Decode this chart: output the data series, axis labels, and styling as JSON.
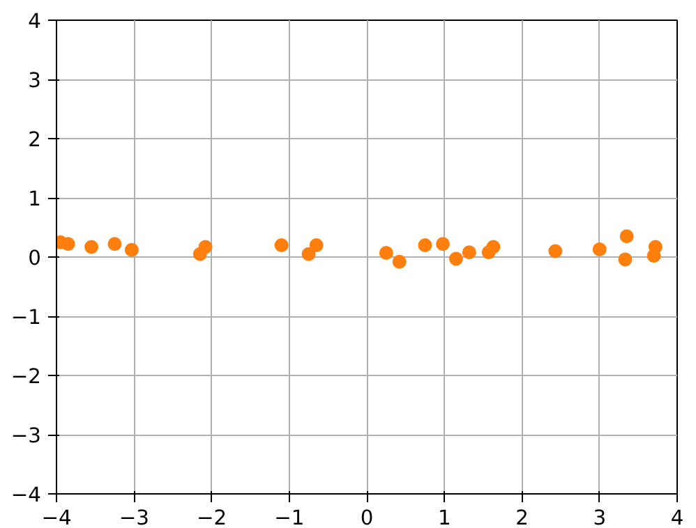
{
  "chart_data": {
    "type": "scatter",
    "x": [
      -3.95,
      -3.85,
      -3.55,
      -3.25,
      -3.03,
      -2.15,
      -2.08,
      -1.1,
      -0.75,
      -0.65,
      0.25,
      0.42,
      0.75,
      0.98,
      1.15,
      1.32,
      1.57,
      1.63,
      2.43,
      3.0,
      3.33,
      3.35,
      3.7,
      3.72
    ],
    "series": [
      {
        "color": "#ff7f0e",
        "values": [
          0.25,
          0.22,
          0.17,
          0.22,
          0.12,
          0.05,
          0.17,
          0.2,
          0.05,
          0.2,
          0.07,
          -0.08,
          0.2,
          0.22,
          -0.03,
          0.08,
          0.08,
          0.17,
          0.1,
          0.13,
          -0.04,
          0.35,
          0.02,
          0.17
        ]
      }
    ],
    "xlim": [
      -4,
      4
    ],
    "ylim": [
      -4,
      4
    ],
    "xticks": [
      -4,
      -3,
      -2,
      -1,
      0,
      1,
      2,
      3,
      4
    ],
    "yticks": [
      -4,
      -3,
      -2,
      -1,
      0,
      1,
      2,
      3,
      4
    ],
    "grid": true,
    "marker": "circle"
  }
}
